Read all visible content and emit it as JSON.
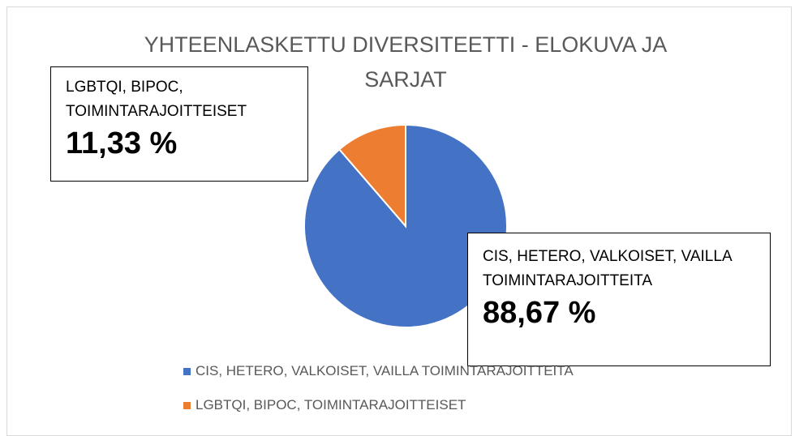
{
  "chart_data": {
    "type": "pie",
    "title": "YHTEENLASKETTU DIVERSITEETTI - ELOKUVA JA SARJAT",
    "categories": [
      "CIS, HETERO, VALKOISET, VAILLA TOIMINTARAJOITTEITA",
      "LGBTQI, BIPOC, TOIMINTARAJOITTEISET"
    ],
    "values": [
      88.67,
      11.33
    ],
    "value_labels": [
      "88,67 %",
      "11,33 %"
    ],
    "colors": [
      "#4472c4",
      "#ed7d31"
    ],
    "legend": "bottom"
  }
}
